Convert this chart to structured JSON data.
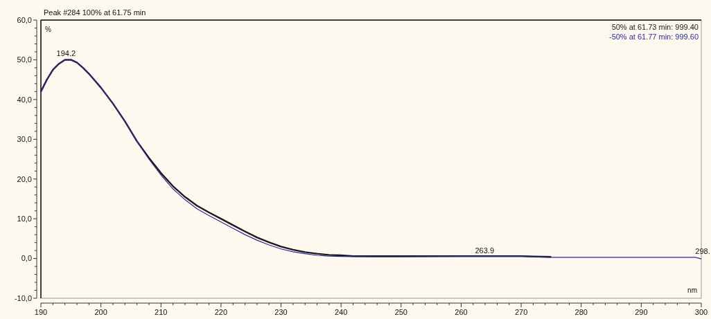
{
  "chart_data": {
    "type": "line",
    "title": "Peak #284  100% at 61.75 min",
    "xlabel": "nm",
    "ylabel": "%",
    "xlim": [
      190,
      300
    ],
    "ylim": [
      -10,
      60
    ],
    "xticks": [
      190,
      {
        "value": 192,
        "label": null
      },
      {
        "value": 194,
        "label": null
      },
      {
        "value": 196,
        "label": null
      },
      {
        "value": 198,
        "label": null
      },
      200,
      {
        "value": 202,
        "label": null
      },
      {
        "value": 204,
        "label": null
      },
      {
        "value": 206,
        "label": null
      },
      {
        "value": 208,
        "label": null
      },
      210,
      {
        "value": 212,
        "label": null
      },
      {
        "value": 214,
        "label": null
      },
      {
        "value": 216,
        "label": null
      },
      {
        "value": 218,
        "label": null
      },
      220,
      {
        "value": 222,
        "label": null
      },
      {
        "value": 224,
        "label": null
      },
      {
        "value": 226,
        "label": null
      },
      {
        "value": 228,
        "label": null
      },
      230,
      {
        "value": 232,
        "label": null
      },
      {
        "value": 234,
        "label": null
      },
      {
        "value": 236,
        "label": null
      },
      {
        "value": 238,
        "label": null
      },
      240,
      {
        "value": 242,
        "label": null
      },
      {
        "value": 244,
        "label": null
      },
      {
        "value": 246,
        "label": null
      },
      {
        "value": 248,
        "label": null
      },
      250,
      {
        "value": 252,
        "label": null
      },
      {
        "value": 254,
        "label": null
      },
      {
        "value": 256,
        "label": null
      },
      {
        "value": 258,
        "label": null
      },
      260,
      {
        "value": 262,
        "label": null
      },
      {
        "value": 264,
        "label": null
      },
      {
        "value": 266,
        "label": null
      },
      {
        "value": 268,
        "label": null
      },
      270,
      {
        "value": 272,
        "label": null
      },
      {
        "value": 274,
        "label": null
      },
      {
        "value": 276,
        "label": null
      },
      {
        "value": 278,
        "label": null
      },
      280,
      {
        "value": 282,
        "label": null
      },
      {
        "value": 284,
        "label": null
      },
      {
        "value": 286,
        "label": null
      },
      {
        "value": 288,
        "label": null
      },
      290,
      {
        "value": 292,
        "label": null
      },
      {
        "value": 294,
        "label": null
      },
      {
        "value": 296,
        "label": null
      },
      {
        "value": 298,
        "label": null
      },
      300
    ],
    "yticks": [
      {
        "value": -10,
        "label": "-10,0"
      },
      {
        "value": -8,
        "label": null
      },
      {
        "value": -6,
        "label": null
      },
      {
        "value": -4,
        "label": null
      },
      {
        "value": -2,
        "label": null
      },
      {
        "value": 0,
        "label": "0,0"
      },
      {
        "value": 2,
        "label": null
      },
      {
        "value": 4,
        "label": null
      },
      {
        "value": 6,
        "label": null
      },
      {
        "value": 8,
        "label": null
      },
      {
        "value": 10,
        "label": "10,0"
      },
      {
        "value": 12,
        "label": null
      },
      {
        "value": 14,
        "label": null
      },
      {
        "value": 16,
        "label": null
      },
      {
        "value": 18,
        "label": null
      },
      {
        "value": 20,
        "label": "20,0"
      },
      {
        "value": 22,
        "label": null
      },
      {
        "value": 24,
        "label": null
      },
      {
        "value": 26,
        "label": null
      },
      {
        "value": 28,
        "label": null
      },
      {
        "value": 30,
        "label": "30,0"
      },
      {
        "value": 32,
        "label": null
      },
      {
        "value": 34,
        "label": null
      },
      {
        "value": 36,
        "label": null
      },
      {
        "value": 38,
        "label": null
      },
      {
        "value": 40,
        "label": "40,0"
      },
      {
        "value": 42,
        "label": null
      },
      {
        "value": 44,
        "label": null
      },
      {
        "value": 46,
        "label": null
      },
      {
        "value": 48,
        "label": null
      },
      {
        "value": 50,
        "label": "50,0"
      },
      {
        "value": 52,
        "label": null
      },
      {
        "value": 54,
        "label": null
      },
      {
        "value": 56,
        "label": null
      },
      {
        "value": 58,
        "label": null
      },
      {
        "value": 60,
        "label": "60,0"
      }
    ],
    "grid": false,
    "legend": "top right",
    "series": [
      {
        "name": "50% at 61.73 min: 999.40",
        "color": "#1a1a1a",
        "x": [
          190,
          191,
          192,
          193,
          194,
          195,
          196,
          197,
          198,
          200,
          202,
          204,
          206,
          208,
          210,
          212,
          214,
          216,
          218,
          220,
          222,
          224,
          226,
          228,
          230,
          232,
          234,
          236,
          238,
          240,
          242,
          250,
          260,
          270,
          272,
          275
        ],
        "values": [
          42,
          45,
          47.5,
          49,
          50,
          50,
          49.3,
          48,
          46.5,
          43,
          39,
          34.5,
          29.5,
          25.3,
          21.5,
          18.2,
          15.5,
          13.3,
          11.6,
          10,
          8.4,
          6.8,
          5.3,
          4.1,
          3,
          2.2,
          1.6,
          1.2,
          0.9,
          0.8,
          0.6,
          0.6,
          0.6,
          0.6,
          0.5,
          0.4
        ]
      },
      {
        "name": "-50% at 61.77 min: 999.60",
        "color": "#2a2aa0",
        "x": [
          190,
          191,
          192,
          193,
          194,
          195,
          196,
          197,
          198,
          200,
          202,
          204,
          206,
          208,
          210,
          212,
          214,
          216,
          218,
          220,
          222,
          224,
          226,
          228,
          230,
          232,
          234,
          236,
          238,
          240,
          245,
          250,
          260,
          270,
          275,
          280,
          290,
          299,
          300
        ],
        "values": [
          42,
          45,
          47.5,
          49,
          50,
          50,
          49.3,
          48,
          46.5,
          43,
          39,
          34.5,
          29.5,
          25,
          21,
          17.5,
          14.8,
          12.5,
          10.8,
          9.2,
          7.6,
          6,
          4.6,
          3.4,
          2.4,
          1.7,
          1.2,
          0.8,
          0.6,
          0.5,
          0.4,
          0.4,
          0.5,
          0.5,
          0.3,
          0.3,
          0.3,
          0.3,
          -0.1
        ]
      }
    ],
    "annotations": [
      {
        "text": "194.2",
        "x": 194.2,
        "y": 50
      },
      {
        "text": "263.9",
        "x": 263.9,
        "y": 0.5
      },
      {
        "text": "298.",
        "x": 299,
        "y": 0.3
      }
    ]
  }
}
